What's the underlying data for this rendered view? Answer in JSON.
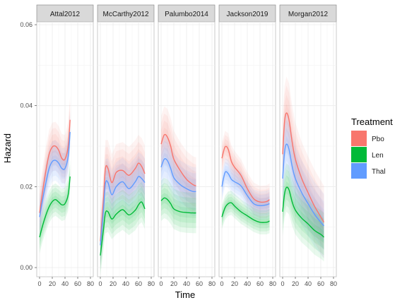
{
  "chart_data": {
    "type": "line",
    "xlabel": "Time",
    "ylabel": "Hazard",
    "xlim": [
      0,
      80
    ],
    "ylim": [
      0,
      0.06
    ],
    "x_ticks": [
      0,
      20,
      40,
      60,
      80
    ],
    "y_ticks": [
      0.0,
      0.02,
      0.04,
      0.06
    ],
    "y_tick_labels": [
      "0.00",
      "0.02",
      "0.04",
      "0.06"
    ],
    "grid": true,
    "legend": {
      "title": "Treatment",
      "placement": "right",
      "entries": [
        {
          "name": "Pbo",
          "color": "#F8766D"
        },
        {
          "name": "Len",
          "color": "#00BA38"
        },
        {
          "name": "Thal",
          "color": "#619CFF"
        }
      ]
    },
    "panels": [
      {
        "title": "Attal2012",
        "series": [
          {
            "name": "Pbo",
            "color": "#F8766D",
            "x": [
              0,
              5,
              10,
              15,
              20,
              25,
              30,
              35,
              40,
              45,
              48
            ],
            "y": [
              0.0135,
              0.019,
              0.024,
              0.028,
              0.0298,
              0.03,
              0.029,
              0.027,
              0.0268,
              0.03,
              0.0365
            ],
            "band": 0.006
          },
          {
            "name": "Thal",
            "color": "#619CFF",
            "x": [
              0,
              5,
              10,
              15,
              20,
              25,
              30,
              35,
              40,
              45,
              48
            ],
            "y": [
              0.0125,
              0.017,
              0.021,
              0.0245,
              0.0262,
              0.0265,
              0.0258,
              0.0245,
              0.0245,
              0.0275,
              0.0335
            ],
            "band": 0.005
          },
          {
            "name": "Len",
            "color": "#00BA38",
            "x": [
              0,
              5,
              10,
              15,
              20,
              25,
              30,
              35,
              40,
              45,
              48
            ],
            "y": [
              0.0075,
              0.0105,
              0.013,
              0.015,
              0.0163,
              0.0168,
              0.0162,
              0.0155,
              0.0158,
              0.018,
              0.0225
            ],
            "band": 0.004
          }
        ]
      },
      {
        "title": "McCarthy2012",
        "series": [
          {
            "name": "Pbo",
            "color": "#F8766D",
            "x": [
              0,
              5,
              8,
              12,
              18,
              25,
              35,
              45,
              55,
              60,
              65,
              70
            ],
            "y": [
              0.0065,
              0.017,
              0.0245,
              0.0245,
              0.021,
              0.0235,
              0.024,
              0.0228,
              0.0245,
              0.0258,
              0.025,
              0.0232
            ],
            "band": 0.007
          },
          {
            "name": "Thal",
            "color": "#619CFF",
            "x": [
              0,
              5,
              8,
              12,
              18,
              25,
              35,
              45,
              55,
              60,
              65,
              70
            ],
            "y": [
              0.0055,
              0.0145,
              0.0208,
              0.021,
              0.018,
              0.02,
              0.0212,
              0.0195,
              0.0212,
              0.0225,
              0.022,
              0.021
            ],
            "band": 0.006
          },
          {
            "name": "Len",
            "color": "#00BA38",
            "x": [
              0,
              5,
              8,
              12,
              18,
              25,
              35,
              45,
              55,
              60,
              65,
              70
            ],
            "y": [
              0.003,
              0.0095,
              0.0135,
              0.0138,
              0.012,
              0.0132,
              0.0143,
              0.013,
              0.0142,
              0.0155,
              0.0162,
              0.0145
            ],
            "band": 0.005
          }
        ]
      },
      {
        "title": "Palumbo2014",
        "series": [
          {
            "name": "Pbo",
            "color": "#F8766D",
            "x": [
              0,
              5,
              10,
              15,
              20,
              30,
              40,
              50,
              55
            ],
            "y": [
              0.0305,
              0.0328,
              0.0322,
              0.03,
              0.0268,
              0.024,
              0.0218,
              0.0205,
              0.0202
            ],
            "band": 0.007
          },
          {
            "name": "Thal",
            "color": "#619CFF",
            "x": [
              0,
              5,
              10,
              15,
              20,
              30,
              40,
              50,
              55
            ],
            "y": [
              0.0248,
              0.0268,
              0.0264,
              0.0245,
              0.0222,
              0.0205,
              0.0195,
              0.0188,
              0.0188
            ],
            "band": 0.006
          },
          {
            "name": "Len",
            "color": "#00BA38",
            "x": [
              0,
              5,
              10,
              15,
              20,
              30,
              40,
              50,
              55
            ],
            "y": [
              0.0165,
              0.0172,
              0.0168,
              0.0158,
              0.0145,
              0.0138,
              0.0136,
              0.0135,
              0.0135
            ],
            "band": 0.005
          }
        ]
      },
      {
        "title": "Jackson2019",
        "series": [
          {
            "name": "Pbo",
            "color": "#F8766D",
            "x": [
              0,
              5,
              10,
              15,
              20,
              30,
              40,
              50,
              60,
              70,
              75
            ],
            "y": [
              0.027,
              0.0298,
              0.0292,
              0.0262,
              0.0248,
              0.0228,
              0.0195,
              0.017,
              0.0162,
              0.0163,
              0.0168
            ],
            "band": 0.004
          },
          {
            "name": "Thal",
            "color": "#619CFF",
            "x": [
              0,
              5,
              10,
              15,
              20,
              30,
              40,
              50,
              60,
              70,
              75
            ],
            "y": [
              0.02,
              0.0235,
              0.0232,
              0.0218,
              0.0212,
              0.0202,
              0.0178,
              0.0158,
              0.0153,
              0.0155,
              0.0158
            ],
            "band": 0.0035
          },
          {
            "name": "Len",
            "color": "#00BA38",
            "x": [
              0,
              5,
              10,
              15,
              20,
              30,
              40,
              50,
              60,
              70,
              75
            ],
            "y": [
              0.0125,
              0.0148,
              0.0158,
              0.016,
              0.0152,
              0.0138,
              0.0128,
              0.0118,
              0.0112,
              0.0112,
              0.0115
            ],
            "band": 0.003
          }
        ]
      },
      {
        "title": "Morgan2012",
        "series": [
          {
            "name": "Pbo",
            "color": "#F8766D",
            "x": [
              0,
              3,
              6,
              10,
              15,
              20,
              30,
              40,
              50,
              60,
              65
            ],
            "y": [
              0.028,
              0.036,
              0.0382,
              0.0365,
              0.031,
              0.0268,
              0.022,
              0.0185,
              0.0152,
              0.0125,
              0.0112
            ],
            "band": 0.009
          },
          {
            "name": "Thal",
            "color": "#619CFF",
            "x": [
              0,
              3,
              6,
              10,
              15,
              20,
              30,
              40,
              50,
              60,
              65
            ],
            "y": [
              0.022,
              0.0285,
              0.0305,
              0.0292,
              0.025,
              0.022,
              0.0185,
              0.0158,
              0.0132,
              0.0112,
              0.0103
            ],
            "band": 0.008
          },
          {
            "name": "Len",
            "color": "#00BA38",
            "x": [
              0,
              3,
              6,
              10,
              15,
              20,
              30,
              40,
              50,
              60,
              65
            ],
            "y": [
              0.0138,
              0.0182,
              0.0198,
              0.0192,
              0.0162,
              0.0142,
              0.0122,
              0.0108,
              0.0092,
              0.0082,
              0.0075
            ],
            "band": 0.006
          }
        ]
      }
    ]
  }
}
